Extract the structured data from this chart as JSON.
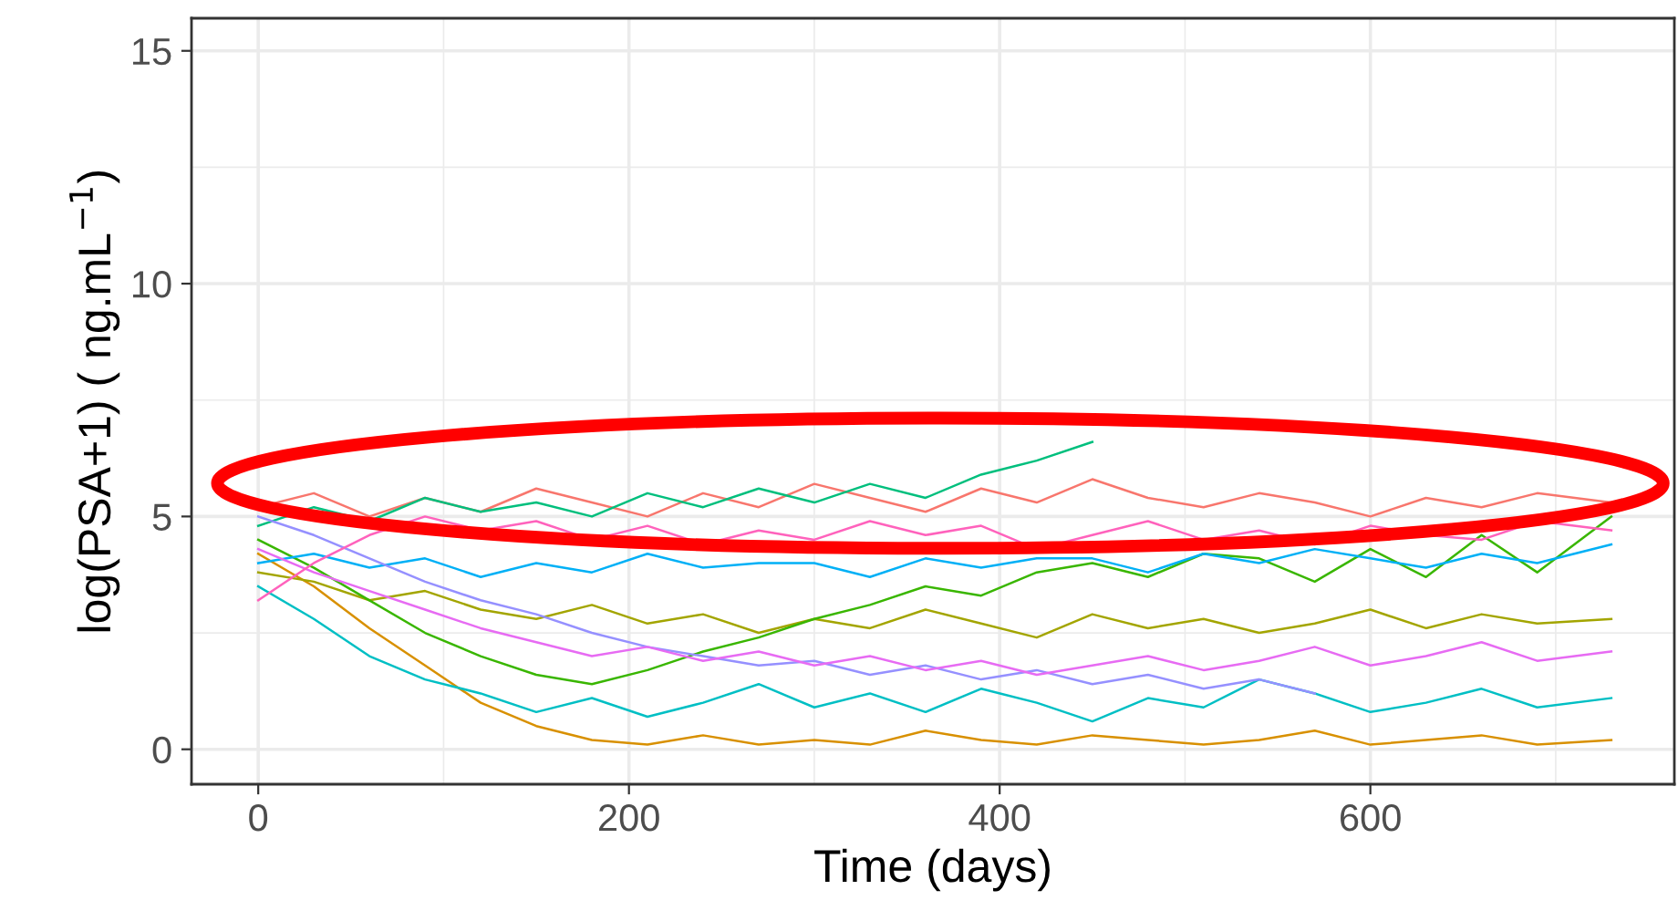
{
  "chart_data": {
    "type": "line",
    "xlabel": "Time (days)",
    "ylabel": "log(PSA+1) ( ng.mL$^{−1}$)",
    "x": [
      0,
      30,
      60,
      90,
      120,
      150,
      180,
      210,
      240,
      270,
      300,
      330,
      360,
      390,
      420,
      450,
      480,
      510,
      540,
      570,
      600,
      630,
      660,
      690,
      730
    ],
    "xlim": [
      -36,
      764
    ],
    "xticks": [
      0,
      200,
      400,
      600
    ],
    "ylim": [
      -0.75,
      15.7
    ],
    "yticks": [
      0,
      5,
      10,
      15
    ],
    "grid": true,
    "legend": false,
    "series": [
      {
        "color": "#F8766D",
        "values": [
          5.2,
          5.5,
          5.0,
          5.4,
          5.1,
          5.6,
          5.3,
          5.0,
          5.5,
          5.2,
          5.7,
          5.4,
          5.1,
          5.6,
          5.3,
          5.8,
          5.4,
          5.2,
          5.5,
          5.3,
          5.0,
          5.4,
          5.2,
          5.5,
          5.3
        ]
      },
      {
        "color": "#D89000",
        "values": [
          4.2,
          3.5,
          2.6,
          1.8,
          1.0,
          0.5,
          0.2,
          0.1,
          0.3,
          0.1,
          0.2,
          0.1,
          0.4,
          0.2,
          0.1,
          0.3,
          0.2,
          0.1,
          0.2,
          0.4,
          0.1,
          0.2,
          0.3,
          0.1,
          0.2
        ]
      },
      {
        "color": "#A3A500",
        "values": [
          3.8,
          3.6,
          3.2,
          3.4,
          3.0,
          2.8,
          3.1,
          2.7,
          2.9,
          2.5,
          2.8,
          2.6,
          3.0,
          2.7,
          2.4,
          2.9,
          2.6,
          2.8,
          2.5,
          2.7,
          3.0,
          2.6,
          2.9,
          2.7,
          2.8
        ]
      },
      {
        "color": "#39B600",
        "values": [
          4.5,
          3.9,
          3.2,
          2.5,
          2.0,
          1.6,
          1.4,
          1.7,
          2.1,
          2.4,
          2.8,
          3.1,
          3.5,
          3.3,
          3.8,
          4.0,
          3.7,
          4.2,
          4.1,
          3.6,
          4.3,
          3.7,
          4.6,
          3.8,
          5.0
        ]
      },
      {
        "color": "#00BF7D",
        "values": [
          4.8,
          5.2,
          4.9,
          5.4,
          5.1,
          5.3,
          5.0,
          5.5,
          5.2,
          5.6,
          5.3,
          5.7,
          5.4,
          5.9,
          6.2,
          6.6,
          null,
          null,
          null,
          null,
          null,
          null,
          null,
          null,
          null
        ]
      },
      {
        "color": "#00BFC4",
        "values": [
          3.5,
          2.8,
          2.0,
          1.5,
          1.2,
          0.8,
          1.1,
          0.7,
          1.0,
          1.4,
          0.9,
          1.2,
          0.8,
          1.3,
          1.0,
          0.6,
          1.1,
          0.9,
          1.5,
          1.2,
          0.8,
          1.0,
          1.3,
          0.9,
          1.1
        ]
      },
      {
        "color": "#00B0F6",
        "values": [
          4.0,
          4.2,
          3.9,
          4.1,
          3.7,
          4.0,
          3.8,
          4.2,
          3.9,
          4.0,
          4.0,
          3.7,
          4.1,
          3.9,
          4.1,
          4.1,
          3.8,
          4.2,
          4.0,
          4.3,
          4.1,
          3.9,
          4.2,
          4.0,
          4.4
        ]
      },
      {
        "color": "#9590FF",
        "values": [
          5.0,
          4.6,
          4.1,
          3.6,
          3.2,
          2.9,
          2.5,
          2.2,
          2.0,
          1.8,
          1.9,
          1.6,
          1.8,
          1.5,
          1.7,
          1.4,
          1.6,
          1.3,
          1.5,
          1.2,
          null,
          null,
          null,
          null,
          null
        ]
      },
      {
        "color": "#E76BF3",
        "values": [
          4.3,
          3.8,
          3.4,
          3.0,
          2.6,
          2.3,
          2.0,
          2.2,
          1.9,
          2.1,
          1.8,
          2.0,
          1.7,
          1.9,
          1.6,
          1.8,
          2.0,
          1.7,
          1.9,
          2.2,
          1.8,
          2.0,
          2.3,
          1.9,
          2.1
        ]
      },
      {
        "color": "#FF62BC",
        "values": [
          3.2,
          4.0,
          4.6,
          5.0,
          4.7,
          4.9,
          4.5,
          4.8,
          4.4,
          4.7,
          4.5,
          4.9,
          4.6,
          4.8,
          4.3,
          4.6,
          4.9,
          4.5,
          4.7,
          4.4,
          4.8,
          4.6,
          4.5,
          4.9,
          4.7
        ]
      }
    ]
  }
}
